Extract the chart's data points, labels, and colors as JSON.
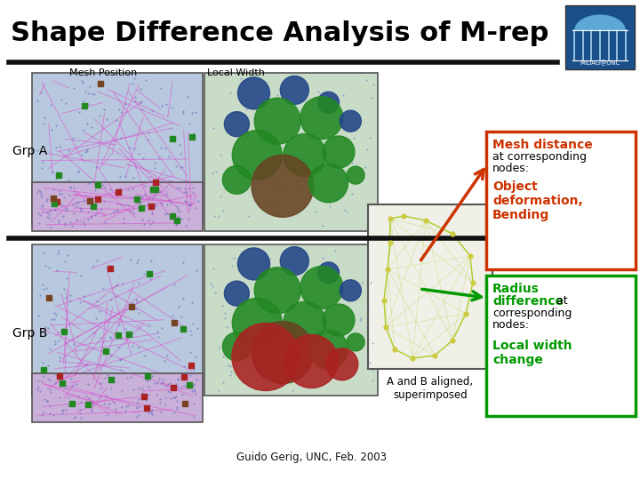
{
  "title": "Shape Difference Analysis of M-rep",
  "title_fontsize": 22,
  "title_color": "#000000",
  "bg_color": "#d4d0c8",
  "label_mesh_position": "Mesh Position",
  "label_local_width": "Local Width",
  "label_grp_a": "Grp A",
  "label_grp_b": "Grp B",
  "label_aligned": "A and B aligned,\nsuperimposed",
  "footer": "Guido Gerig, UNC, Feb. 2003",
  "box1_border": "#cc3300",
  "box1_title": "Mesh distance",
  "box1_body": " at corresponding\nnodes:",
  "box1_highlight": "Object\ndeformation,\nBending",
  "box1_title_color": "#cc3300",
  "box1_highlight_color": "#cc3300",
  "box2_border": "#009900",
  "box2_title": "Radius\ndifference",
  "box2_body_inline": "difference",
  "box2_body": " at\ncorresponding\nnodes:",
  "box2_highlight": "Local width\nchange",
  "box2_title_color": "#009900",
  "box2_highlight_color": "#009900",
  "arrow1_color": "#cc3300",
  "arrow2_color": "#009900",
  "sep_color": "#111111",
  "white": "#ffffff",
  "black": "#000000",
  "img_border": "#555555",
  "logo_bg": "#1a4f8a",
  "logo_dome": "#5da8d6",
  "logo_col": "#aad4f0",
  "logo_text": "MIDAG@UNC",
  "mesh_line_color": "#9955aa",
  "mesh_dot_green": "#228822",
  "mesh_dot_red": "#aa2222",
  "mesh_dot_brown": "#774422",
  "strip_bg": "#c8b0d8",
  "mesh_bg": "#b8c8de",
  "bubble_blue": "#224488",
  "bubble_green": "#228822",
  "bubble_brown": "#664422",
  "bubble_red": "#aa2222",
  "wire_color": "#aacc22",
  "wire_dot": "#cccc44",
  "center_box_bg": "#f0f0e8"
}
